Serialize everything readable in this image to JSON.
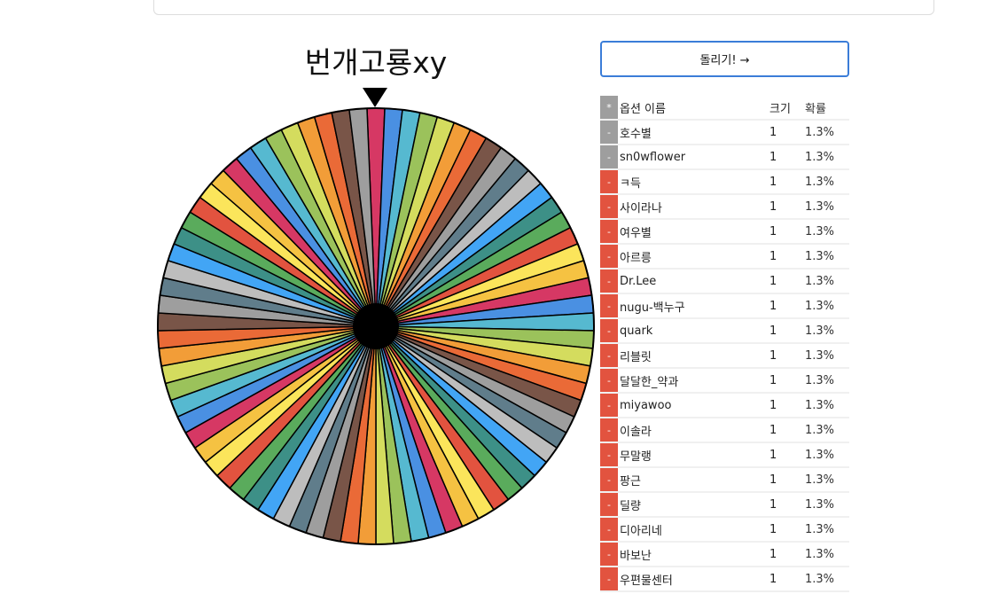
{
  "title": "번개고룡xy",
  "spin_button": "돌리기! →",
  "table": {
    "header": {
      "marker": "*",
      "name": "옵션 이름",
      "size": "크기",
      "prob": "확률"
    },
    "rows": [
      {
        "btn": "-",
        "name": "호수별",
        "size": "1",
        "prob": "1.3%",
        "btn_color": "#9e9e9e"
      },
      {
        "btn": "-",
        "name": "sn0wflower",
        "size": "1",
        "prob": "1.3%",
        "btn_color": "#9e9e9e"
      },
      {
        "btn": "-",
        "name": "ㅋ득",
        "size": "1",
        "prob": "1.3%",
        "btn_color": "#e2533f"
      },
      {
        "btn": "-",
        "name": "사이라나",
        "size": "1",
        "prob": "1.3%",
        "btn_color": "#e2533f"
      },
      {
        "btn": "-",
        "name": "여우별",
        "size": "1",
        "prob": "1.3%",
        "btn_color": "#e2533f"
      },
      {
        "btn": "-",
        "name": "아르릉",
        "size": "1",
        "prob": "1.3%",
        "btn_color": "#e2533f"
      },
      {
        "btn": "-",
        "name": "Dr.Lee",
        "size": "1",
        "prob": "1.3%",
        "btn_color": "#e2533f"
      },
      {
        "btn": "-",
        "name": "nugu-백누구",
        "size": "1",
        "prob": "1.3%",
        "btn_color": "#e2533f"
      },
      {
        "btn": "-",
        "name": "quark",
        "size": "1",
        "prob": "1.3%",
        "btn_color": "#e2533f"
      },
      {
        "btn": "-",
        "name": "리블릿",
        "size": "1",
        "prob": "1.3%",
        "btn_color": "#e2533f"
      },
      {
        "btn": "-",
        "name": "달달한_약과",
        "size": "1",
        "prob": "1.3%",
        "btn_color": "#e2533f"
      },
      {
        "btn": "-",
        "name": "miyawoo",
        "size": "1",
        "prob": "1.3%",
        "btn_color": "#e2533f"
      },
      {
        "btn": "-",
        "name": "이솔라",
        "size": "1",
        "prob": "1.3%",
        "btn_color": "#e2533f"
      },
      {
        "btn": "-",
        "name": "무말랭",
        "size": "1",
        "prob": "1.3%",
        "btn_color": "#e2533f"
      },
      {
        "btn": "-",
        "name": "팡근",
        "size": "1",
        "prob": "1.3%",
        "btn_color": "#e2533f"
      },
      {
        "btn": "-",
        "name": "딜량",
        "size": "1",
        "prob": "1.3%",
        "btn_color": "#e2533f"
      },
      {
        "btn": "-",
        "name": "디아리네",
        "size": "1",
        "prob": "1.3%",
        "btn_color": "#e2533f"
      },
      {
        "btn": "-",
        "name": "바보난",
        "size": "1",
        "prob": "1.3%",
        "btn_color": "#e2533f"
      },
      {
        "btn": "-",
        "name": "우편물센터",
        "size": "1",
        "prob": "1.3%",
        "btn_color": "#e2533f"
      }
    ]
  },
  "wheel": {
    "segment_count": 77,
    "palette": [
      "#d63864",
      "#4a90e2",
      "#56b9d0",
      "#9bc25b",
      "#d4dc5e",
      "#f29d38",
      "#ea6a37",
      "#795548",
      "#9e9e9e",
      "#607d8b",
      "#bdbdbd",
      "#42a5f5",
      "#3d9087",
      "#5aab5c",
      "#e2533f",
      "#fbe55b",
      "#f5c242"
    ]
  }
}
